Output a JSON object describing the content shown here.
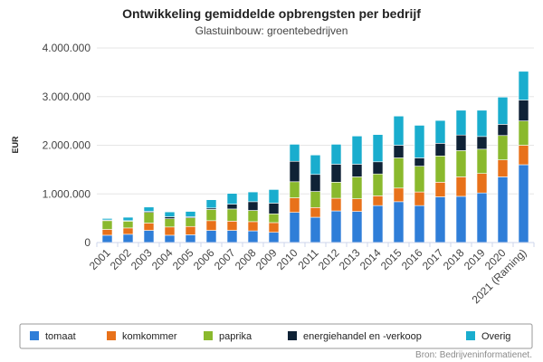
{
  "chart_data": {
    "type": "bar",
    "stacked": true,
    "title": "Ontwikkeling gemiddelde opbrengsten per bedrijf",
    "subtitle": "Glastuinbouw: groentebedrijven",
    "xlabel": "",
    "ylabel": "EUR",
    "ylim": [
      0,
      4000000
    ],
    "yticks": [
      0,
      1000000,
      2000000,
      3000000,
      4000000
    ],
    "ytick_labels": [
      "0",
      "1.000.000",
      "2.000.000",
      "3.000.000",
      "4.000.000"
    ],
    "grid": true,
    "categories": [
      "2001",
      "2002",
      "2003",
      "2004",
      "2005",
      "2006",
      "2007",
      "2008",
      "2009",
      "2010",
      "2011",
      "2012",
      "2013",
      "2014",
      "2015",
      "2016",
      "2017",
      "2018",
      "2019",
      "2020",
      "2021 (Raming)"
    ],
    "series": [
      {
        "name": "tomaat",
        "color": "#2f7ed8",
        "values": [
          150000,
          170000,
          250000,
          150000,
          160000,
          250000,
          250000,
          240000,
          210000,
          620000,
          520000,
          650000,
          640000,
          760000,
          840000,
          760000,
          940000,
          950000,
          1020000,
          1350000,
          1600000
        ]
      },
      {
        "name": "komkommer",
        "color": "#e8711a",
        "values": [
          120000,
          130000,
          150000,
          170000,
          170000,
          200000,
          190000,
          190000,
          200000,
          300000,
          200000,
          260000,
          260000,
          200000,
          280000,
          280000,
          300000,
          400000,
          400000,
          350000,
          400000
        ]
      },
      {
        "name": "paprika",
        "color": "#8ab92d",
        "values": [
          180000,
          140000,
          220000,
          170000,
          180000,
          230000,
          250000,
          230000,
          180000,
          330000,
          330000,
          330000,
          450000,
          450000,
          620000,
          530000,
          540000,
          540000,
          500000,
          500000,
          500000
        ]
      },
      {
        "name": "energiehandel en -verkoop",
        "color": "#0f2236",
        "values": [
          15000,
          10000,
          20000,
          40000,
          20000,
          30000,
          100000,
          180000,
          220000,
          420000,
          350000,
          370000,
          260000,
          250000,
          260000,
          170000,
          260000,
          320000,
          260000,
          230000,
          430000
        ]
      },
      {
        "name": "Overig",
        "color": "#1aadce",
        "values": [
          30000,
          70000,
          90000,
          100000,
          110000,
          170000,
          220000,
          200000,
          280000,
          350000,
          400000,
          410000,
          580000,
          560000,
          600000,
          670000,
          470000,
          510000,
          540000,
          560000,
          590000
        ]
      }
    ]
  },
  "source_text": "Bron: Bedrijveninformatienet."
}
